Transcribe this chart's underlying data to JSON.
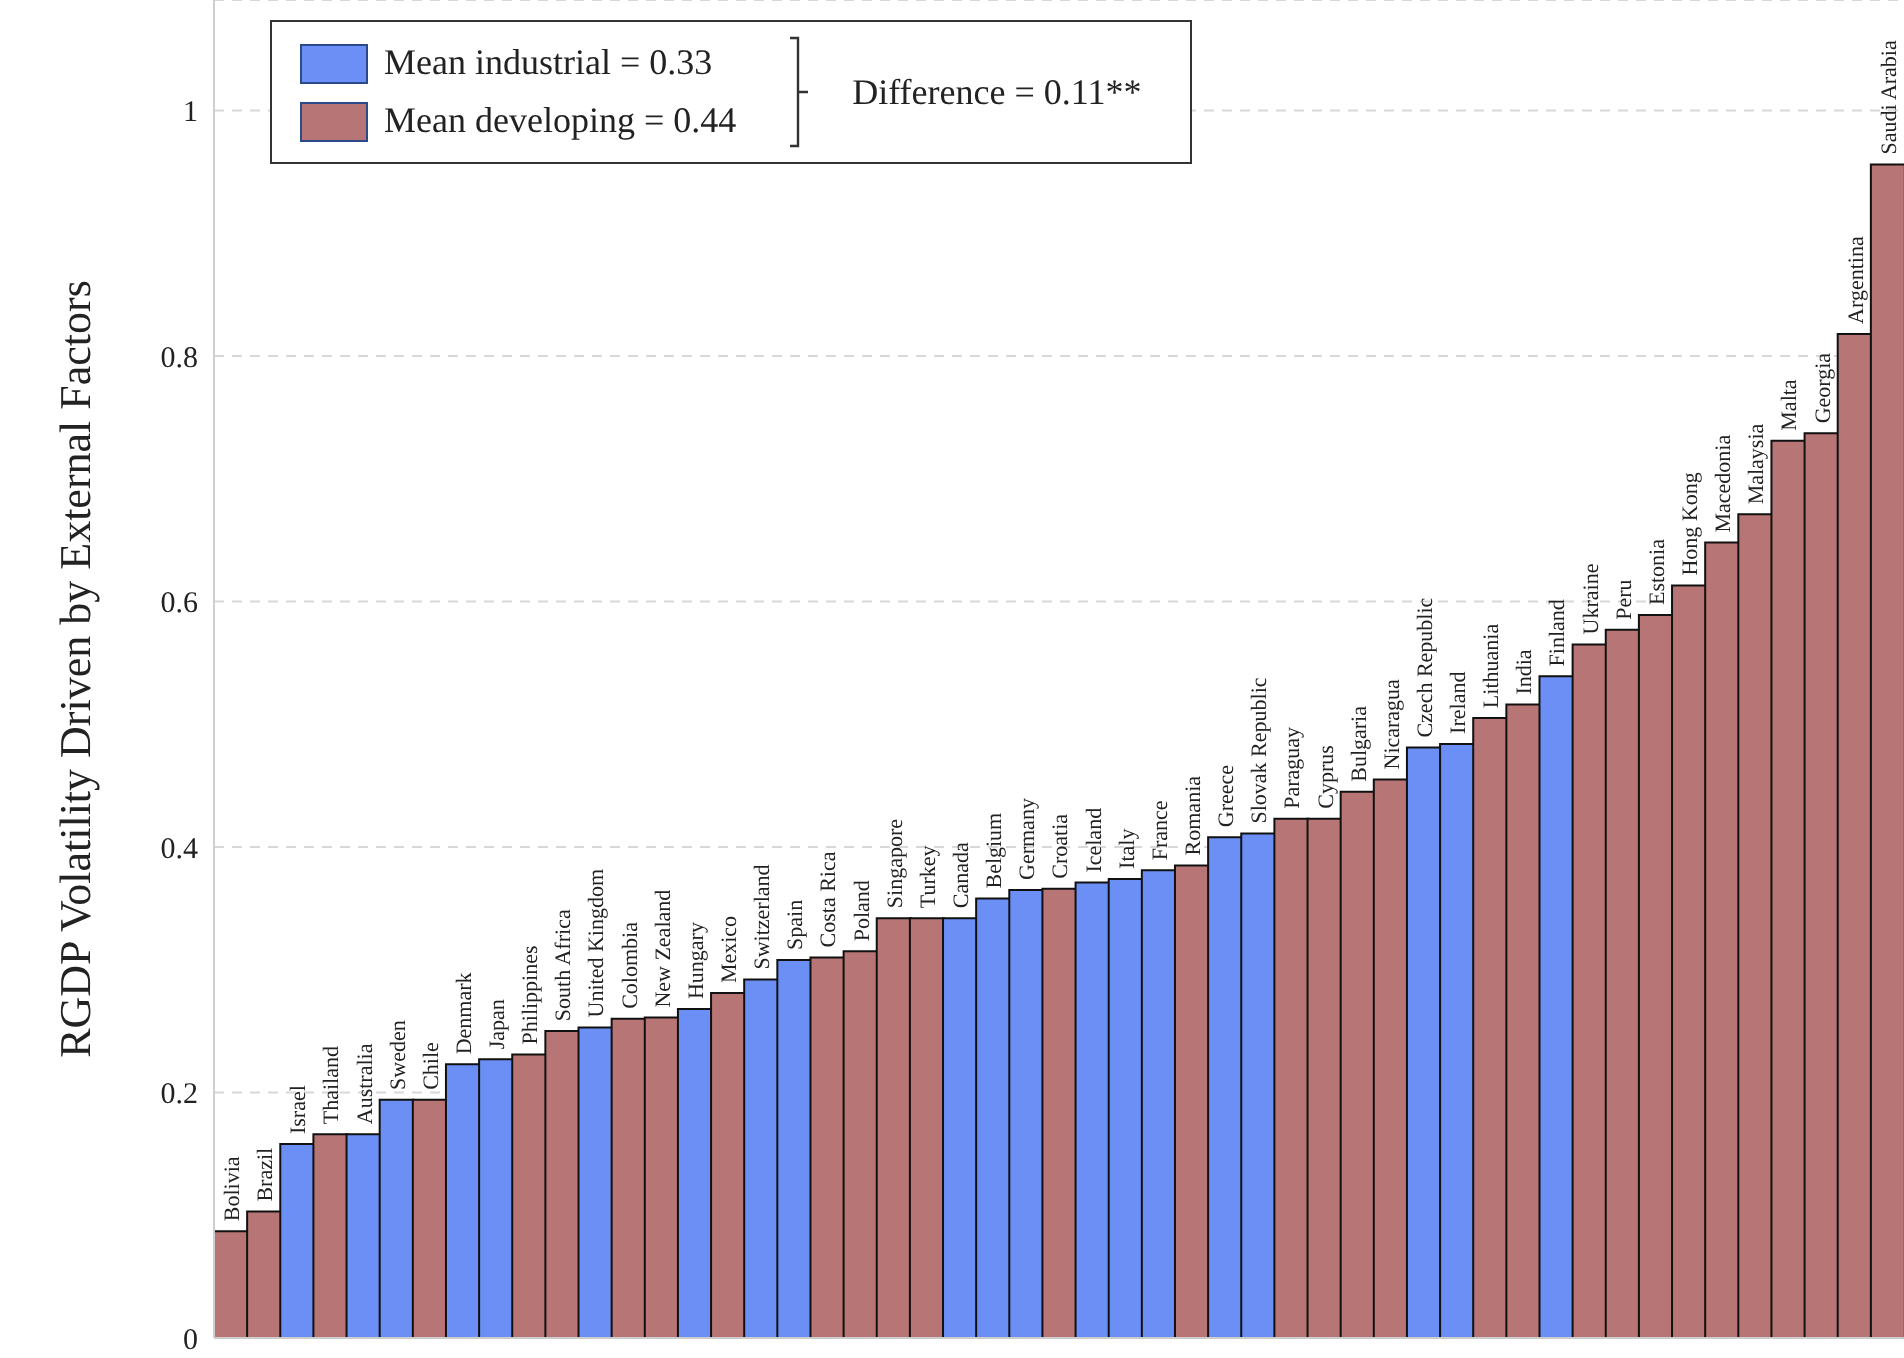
{
  "chart_data": {
    "type": "bar",
    "ylabel": "RGDP Volatility Driven by External Factors",
    "categories": [
      "Bolivia",
      "Brazil",
      "Israel",
      "Thailand",
      "Australia",
      "Sweden",
      "Chile",
      "Denmark",
      "Japan",
      "Philippines",
      "South Africa",
      "United Kingdom",
      "Colombia",
      "New Zealand",
      "Hungary",
      "Mexico",
      "Switzerland",
      "Spain",
      "Costa Rica",
      "Poland",
      "Singapore",
      "Turkey",
      "Canada",
      "Belgium",
      "Germany",
      "Croatia",
      "Iceland",
      "Italy",
      "France",
      "Romania",
      "Greece",
      "Slovak Republic",
      "Paraguay",
      "Cyprus",
      "Bulgaria",
      "Nicaragua",
      "Czech Republic",
      "Ireland",
      "Lithuania",
      "India",
      "Finland",
      "Ukraine",
      "Peru",
      "Estonia",
      "Hong Kong",
      "Macedonia",
      "Malaysia",
      "Malta",
      "Georgia",
      "Argentina",
      "Saudi Arabia"
    ],
    "series": [
      {
        "name": "Mean industrial = 0.33",
        "color": "#6b8ff5",
        "values": [
          null,
          null,
          0.158,
          null,
          0.166,
          0.194,
          null,
          0.223,
          0.227,
          null,
          null,
          0.253,
          null,
          null,
          0.268,
          null,
          0.292,
          0.308,
          null,
          null,
          null,
          null,
          0.342,
          0.358,
          0.365,
          null,
          0.371,
          0.374,
          0.381,
          null,
          0.408,
          0.411,
          null,
          null,
          null,
          null,
          0.481,
          0.484,
          null,
          null,
          0.539,
          null,
          null,
          null,
          null,
          null,
          null,
          null,
          null,
          null,
          null
        ]
      },
      {
        "name": "Mean developing = 0.44",
        "color": "#b87575",
        "values": [
          0.087,
          0.103,
          null,
          0.166,
          null,
          null,
          0.194,
          null,
          null,
          0.231,
          0.25,
          null,
          0.26,
          0.261,
          null,
          0.281,
          null,
          null,
          0.31,
          0.315,
          0.342,
          0.342,
          null,
          null,
          null,
          0.366,
          null,
          null,
          null,
          0.385,
          null,
          null,
          0.423,
          0.423,
          0.445,
          0.455,
          null,
          null,
          0.505,
          0.516,
          null,
          0.565,
          0.577,
          0.589,
          0.613,
          0.648,
          0.671,
          0.731,
          0.737,
          0.818,
          0.956
        ]
      }
    ],
    "ylim": [
      0,
      1.09
    ],
    "yticks": [
      0,
      0.2,
      0.4,
      0.6,
      0.8,
      1
    ],
    "grid": "y",
    "legend": "top left",
    "tick_labels": "y",
    "annotations": [
      "Difference = 0.11**"
    ]
  }
}
